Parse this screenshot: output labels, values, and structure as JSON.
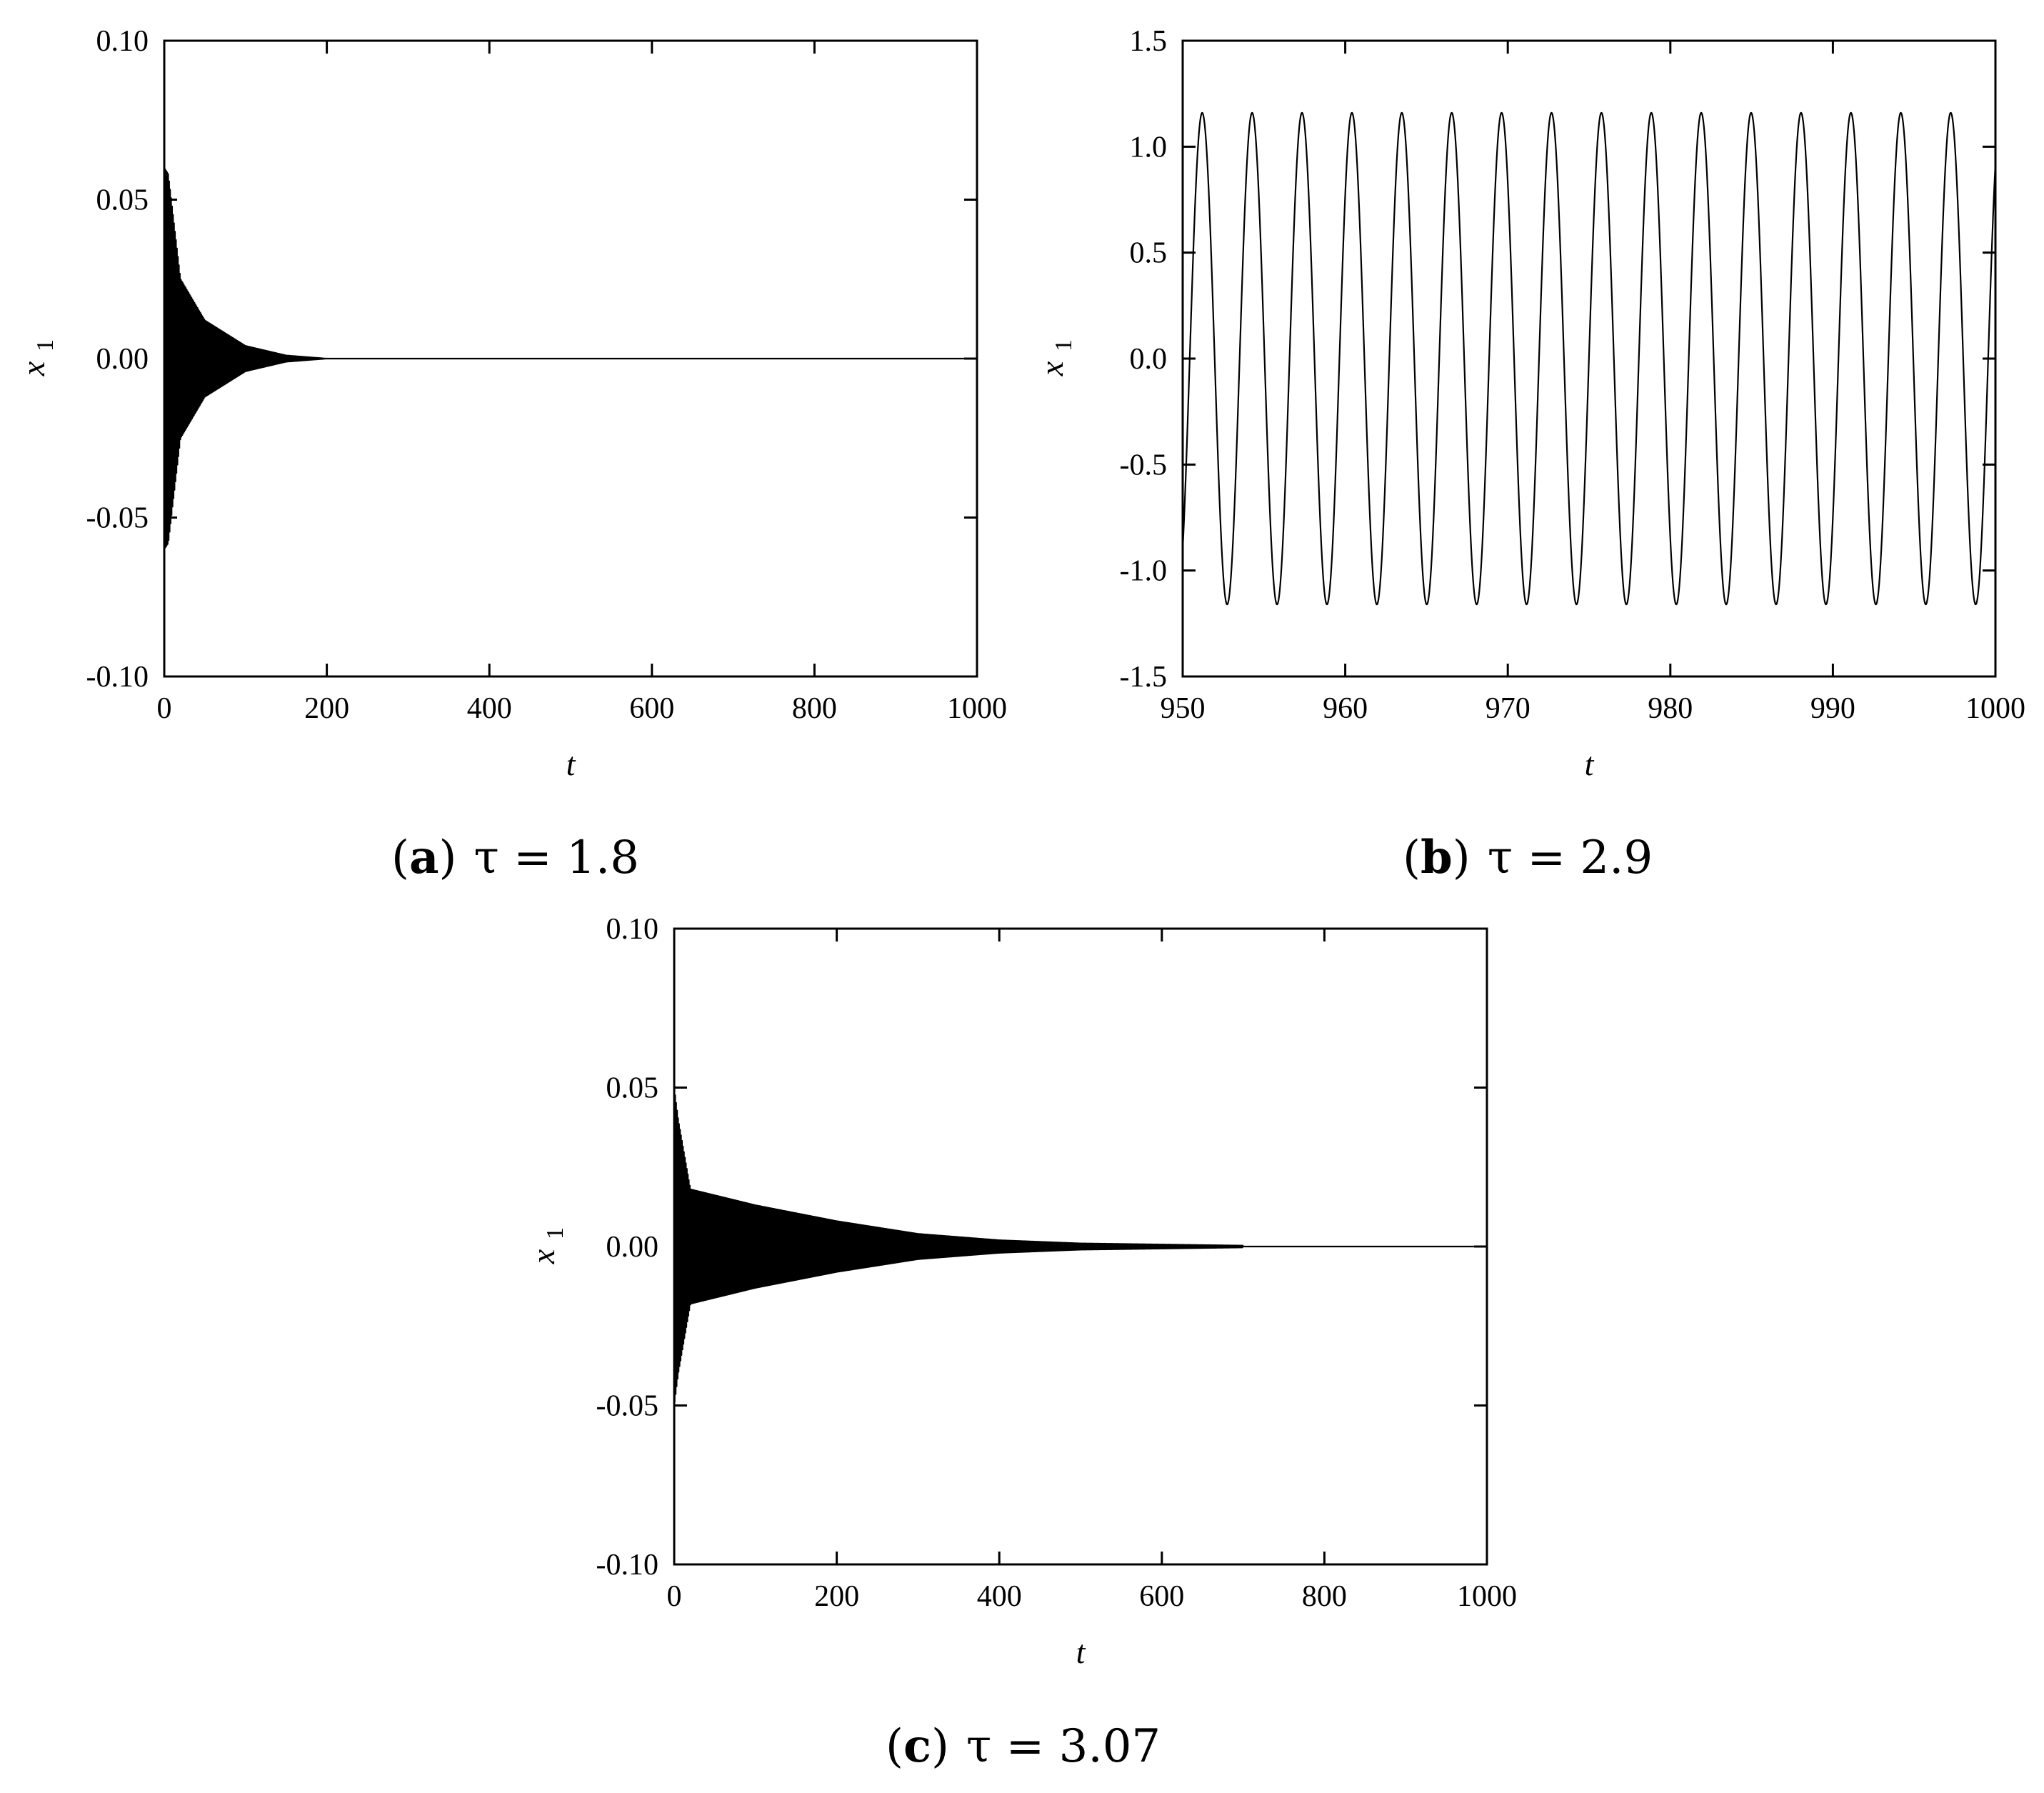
{
  "chart_data": [
    {
      "type": "line",
      "panel": "a",
      "caption": {
        "letter": "a",
        "equation": "τ = 1.8"
      },
      "xlabel": "t",
      "ylabel": "x",
      "ylabel_sub": "1",
      "xlim": [
        0,
        1000
      ],
      "ylim": [
        -0.1,
        0.1
      ],
      "xticks": [
        "0",
        "200",
        "400",
        "600",
        "800",
        "1000"
      ],
      "xtick_values": [
        0,
        200,
        400,
        600,
        800,
        1000
      ],
      "yticks": [
        "-0.10",
        "-0.05",
        "0.00",
        "0.05",
        "0.10"
      ],
      "ytick_values": [
        -0.1,
        -0.05,
        0,
        0.05,
        0.1
      ],
      "signal": {
        "kind": "decaying_oscillation",
        "envelope": [
          [
            0,
            0.06
          ],
          [
            5,
            -0.058
          ],
          [
            20,
            0.025
          ],
          [
            50,
            0.012
          ],
          [
            100,
            0.004
          ],
          [
            150,
            0.001
          ],
          [
            200,
            0.0
          ]
        ],
        "settles_to": 0.0
      }
    },
    {
      "type": "line",
      "panel": "b",
      "caption": {
        "letter": "b",
        "equation": "τ = 2.9"
      },
      "xlabel": "t",
      "ylabel": "x",
      "ylabel_sub": "1",
      "xlim": [
        950,
        1000
      ],
      "ylim": [
        -1.5,
        1.5
      ],
      "xticks": [
        "950",
        "960",
        "970",
        "980",
        "990",
        "1000"
      ],
      "xtick_values": [
        950,
        960,
        970,
        980,
        990,
        1000
      ],
      "yticks": [
        "-1.5",
        "-1.0",
        "-0.5",
        "0.0",
        "0.5",
        "1.0",
        "1.5"
      ],
      "ytick_values": [
        -1.5,
        -1.0,
        -0.5,
        0,
        0.5,
        1.0,
        1.5
      ],
      "signal": {
        "kind": "periodic_oscillation",
        "amplitude": 1.16,
        "period": 3.07,
        "first_peak_t": 951.2
      }
    },
    {
      "type": "line",
      "panel": "c",
      "caption": {
        "letter": "c",
        "equation": "τ = 3.07"
      },
      "xlabel": "t",
      "ylabel": "x",
      "ylabel_sub": "1",
      "xlim": [
        0,
        1000
      ],
      "ylim": [
        -0.1,
        0.1
      ],
      "xticks": [
        "0",
        "200",
        "400",
        "600",
        "800",
        "1000"
      ],
      "xtick_values": [
        0,
        200,
        400,
        600,
        800,
        1000
      ],
      "yticks": [
        "-0.10",
        "-0.05",
        "0.00",
        "0.05",
        "0.10"
      ],
      "ytick_values": [
        -0.1,
        -0.05,
        0,
        0.05,
        0.1
      ],
      "signal": {
        "kind": "decaying_oscillation",
        "envelope": [
          [
            0,
            0.05
          ],
          [
            5,
            -0.04
          ],
          [
            20,
            0.018
          ],
          [
            100,
            0.013
          ],
          [
            200,
            0.008
          ],
          [
            300,
            0.004
          ],
          [
            400,
            0.002
          ],
          [
            500,
            0.001
          ],
          [
            700,
            0.0003
          ]
        ],
        "settles_to": 0.0
      }
    }
  ]
}
